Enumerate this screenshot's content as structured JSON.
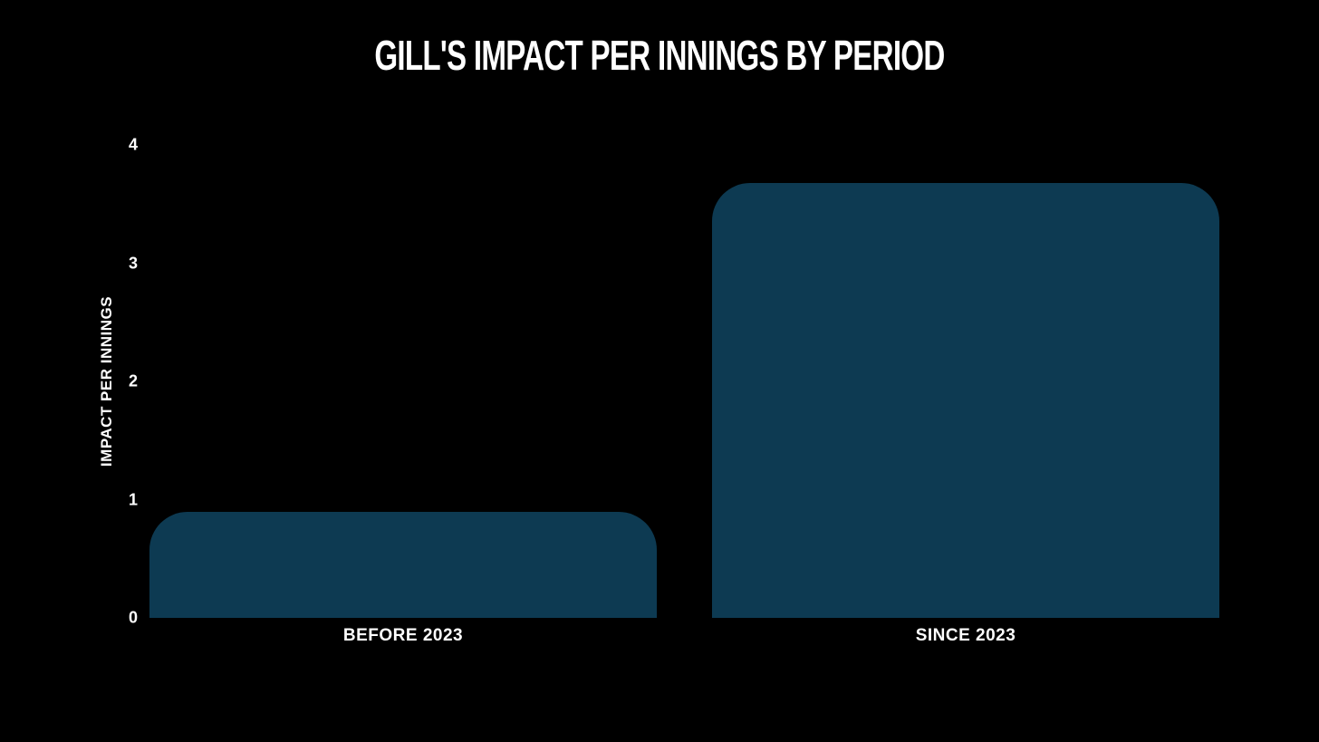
{
  "page": {
    "background": "#000000",
    "text_color": "#ffffff"
  },
  "chart_data": {
    "type": "bar",
    "title": "GILL'S IMPACT PER INNINGS BY PERIOD",
    "categories": [
      "BEFORE 2023",
      "SINCE 2023"
    ],
    "values": [
      0.9,
      3.68
    ],
    "xlabel": "",
    "ylabel": "IMPACT PER INNINGS",
    "ylim": [
      0,
      4
    ],
    "yticks": [
      0,
      1,
      2,
      3,
      4
    ],
    "grid": false,
    "legend": "none",
    "bar_color": "#0d3a52",
    "background": "#000000",
    "text_color": "#ffffff"
  }
}
